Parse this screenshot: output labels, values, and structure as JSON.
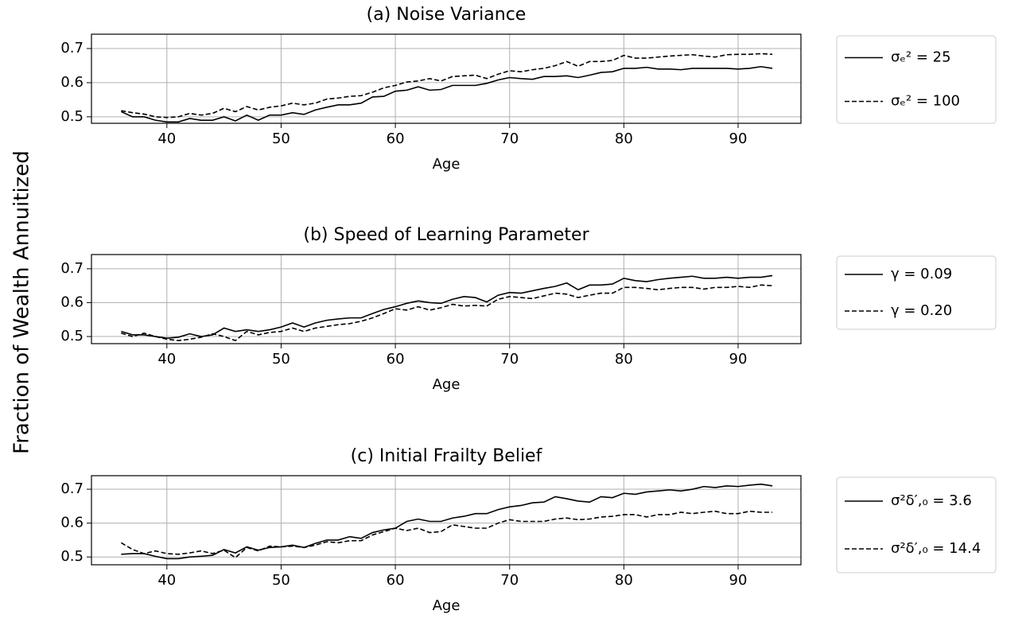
{
  "ylabel": "Fraction of Wealth Annuitized",
  "chart_data": [
    {
      "type": "line",
      "title": "(a) Noise Variance",
      "xlabel": "Age",
      "grid": true,
      "legend": "outside right",
      "x": [
        36,
        37,
        38,
        39,
        40,
        41,
        42,
        43,
        44,
        45,
        46,
        47,
        48,
        49,
        50,
        51,
        52,
        53,
        54,
        55,
        56,
        57,
        58,
        59,
        60,
        61,
        62,
        63,
        64,
        65,
        66,
        67,
        68,
        69,
        70,
        71,
        72,
        73,
        74,
        75,
        76,
        77,
        78,
        79,
        80,
        81,
        82,
        83,
        84,
        85,
        86,
        87,
        88,
        89,
        90,
        91,
        92,
        93
      ],
      "xlim": [
        33.4,
        95.5
      ],
      "xticks": [
        40,
        50,
        60,
        70,
        80,
        90
      ],
      "ylim": [
        0.481,
        0.742
      ],
      "yticks": [
        0.5,
        0.6,
        0.7
      ],
      "series": [
        {
          "name": "σₑ² = 25",
          "color": "#000000",
          "linestyle": "solid",
          "values": [
            0.515,
            0.5,
            0.5,
            0.49,
            0.485,
            0.485,
            0.495,
            0.49,
            0.49,
            0.5,
            0.488,
            0.505,
            0.49,
            0.505,
            0.505,
            0.512,
            0.507,
            0.52,
            0.528,
            0.535,
            0.535,
            0.54,
            0.558,
            0.56,
            0.575,
            0.578,
            0.588,
            0.578,
            0.58,
            0.592,
            0.592,
            0.592,
            0.598,
            0.608,
            0.615,
            0.612,
            0.61,
            0.618,
            0.618,
            0.62,
            0.615,
            0.622,
            0.63,
            0.632,
            0.642,
            0.642,
            0.645,
            0.64,
            0.64,
            0.638,
            0.642,
            0.642,
            0.642,
            0.642,
            0.64,
            0.642,
            0.647,
            0.642
          ]
        },
        {
          "name": "σₑ² = 100",
          "color": "#000000",
          "linestyle": "dashed",
          "values": [
            0.518,
            0.512,
            0.508,
            0.5,
            0.498,
            0.5,
            0.51,
            0.505,
            0.51,
            0.525,
            0.515,
            0.53,
            0.52,
            0.528,
            0.532,
            0.54,
            0.535,
            0.54,
            0.552,
            0.555,
            0.56,
            0.562,
            0.572,
            0.585,
            0.592,
            0.602,
            0.605,
            0.612,
            0.605,
            0.618,
            0.62,
            0.622,
            0.612,
            0.625,
            0.635,
            0.632,
            0.638,
            0.642,
            0.65,
            0.662,
            0.648,
            0.662,
            0.662,
            0.665,
            0.68,
            0.672,
            0.672,
            0.675,
            0.678,
            0.68,
            0.682,
            0.678,
            0.675,
            0.682,
            0.683,
            0.683,
            0.685,
            0.683
          ]
        }
      ]
    },
    {
      "type": "line",
      "title": "(b) Speed of Learning Parameter",
      "xlabel": "Age",
      "grid": true,
      "legend": "outside right",
      "x": [
        36,
        37,
        38,
        39,
        40,
        41,
        42,
        43,
        44,
        45,
        46,
        47,
        48,
        49,
        50,
        51,
        52,
        53,
        54,
        55,
        56,
        57,
        58,
        59,
        60,
        61,
        62,
        63,
        64,
        65,
        66,
        67,
        68,
        69,
        70,
        71,
        72,
        73,
        74,
        75,
        76,
        77,
        78,
        79,
        80,
        81,
        82,
        83,
        84,
        85,
        86,
        87,
        88,
        89,
        90,
        91,
        92,
        93
      ],
      "xlim": [
        33.4,
        95.5
      ],
      "xticks": [
        40,
        50,
        60,
        70,
        80,
        90
      ],
      "ylim": [
        0.479,
        0.742
      ],
      "yticks": [
        0.5,
        0.6,
        0.7
      ],
      "series": [
        {
          "name": "γ = 0.09",
          "color": "#000000",
          "linestyle": "solid",
          "values": [
            0.515,
            0.505,
            0.505,
            0.5,
            0.495,
            0.498,
            0.508,
            0.5,
            0.505,
            0.525,
            0.515,
            0.52,
            0.515,
            0.52,
            0.528,
            0.54,
            0.528,
            0.54,
            0.548,
            0.552,
            0.555,
            0.555,
            0.568,
            0.58,
            0.588,
            0.598,
            0.605,
            0.6,
            0.598,
            0.61,
            0.618,
            0.615,
            0.602,
            0.622,
            0.63,
            0.628,
            0.635,
            0.642,
            0.648,
            0.658,
            0.638,
            0.652,
            0.652,
            0.655,
            0.672,
            0.665,
            0.662,
            0.668,
            0.672,
            0.675,
            0.678,
            0.672,
            0.672,
            0.675,
            0.672,
            0.675,
            0.675,
            0.68
          ]
        },
        {
          "name": "γ = 0.20",
          "color": "#000000",
          "linestyle": "dashed",
          "values": [
            0.51,
            0.5,
            0.51,
            0.5,
            0.492,
            0.488,
            0.492,
            0.498,
            0.508,
            0.5,
            0.488,
            0.515,
            0.505,
            0.512,
            0.515,
            0.525,
            0.515,
            0.525,
            0.53,
            0.535,
            0.538,
            0.545,
            0.555,
            0.568,
            0.582,
            0.578,
            0.588,
            0.578,
            0.585,
            0.595,
            0.59,
            0.592,
            0.59,
            0.61,
            0.618,
            0.615,
            0.612,
            0.62,
            0.628,
            0.625,
            0.615,
            0.622,
            0.628,
            0.628,
            0.645,
            0.645,
            0.642,
            0.638,
            0.642,
            0.645,
            0.645,
            0.64,
            0.645,
            0.645,
            0.648,
            0.645,
            0.652,
            0.65
          ]
        }
      ]
    },
    {
      "type": "line",
      "title": "(c) Initial Frailty Belief",
      "xlabel": "Age",
      "grid": true,
      "legend": "outside right",
      "x": [
        36,
        37,
        38,
        39,
        40,
        41,
        42,
        43,
        44,
        45,
        46,
        47,
        48,
        49,
        50,
        51,
        52,
        53,
        54,
        55,
        56,
        57,
        58,
        59,
        60,
        61,
        62,
        63,
        64,
        65,
        66,
        67,
        68,
        69,
        70,
        71,
        72,
        73,
        74,
        75,
        76,
        77,
        78,
        79,
        80,
        81,
        82,
        83,
        84,
        85,
        86,
        87,
        88,
        89,
        90,
        91,
        92,
        93
      ],
      "xlim": [
        33.4,
        95.5
      ],
      "xticks": [
        40,
        50,
        60,
        70,
        80,
        90
      ],
      "ylim": [
        0.477,
        0.74
      ],
      "yticks": [
        0.5,
        0.6,
        0.7
      ],
      "series": [
        {
          "name": "σ²δ′,₀ = 3.6",
          "color": "#000000",
          "linestyle": "solid",
          "values": [
            0.508,
            0.51,
            0.51,
            0.502,
            0.495,
            0.495,
            0.5,
            0.502,
            0.505,
            0.522,
            0.512,
            0.53,
            0.52,
            0.528,
            0.53,
            0.535,
            0.528,
            0.54,
            0.55,
            0.55,
            0.56,
            0.555,
            0.572,
            0.58,
            0.585,
            0.605,
            0.612,
            0.605,
            0.605,
            0.615,
            0.62,
            0.628,
            0.628,
            0.64,
            0.648,
            0.652,
            0.66,
            0.662,
            0.678,
            0.672,
            0.665,
            0.662,
            0.678,
            0.675,
            0.688,
            0.685,
            0.692,
            0.695,
            0.698,
            0.695,
            0.7,
            0.708,
            0.705,
            0.71,
            0.708,
            0.712,
            0.715,
            0.71
          ]
        },
        {
          "name": "σ²δ′,₀ = 14.4",
          "color": "#000000",
          "linestyle": "dashed",
          "values": [
            0.542,
            0.522,
            0.51,
            0.518,
            0.51,
            0.508,
            0.512,
            0.518,
            0.51,
            0.52,
            0.498,
            0.528,
            0.518,
            0.532,
            0.53,
            0.532,
            0.528,
            0.535,
            0.545,
            0.542,
            0.548,
            0.548,
            0.565,
            0.575,
            0.585,
            0.578,
            0.585,
            0.572,
            0.575,
            0.595,
            0.59,
            0.585,
            0.585,
            0.6,
            0.61,
            0.605,
            0.605,
            0.605,
            0.612,
            0.615,
            0.61,
            0.612,
            0.618,
            0.62,
            0.625,
            0.625,
            0.618,
            0.625,
            0.625,
            0.632,
            0.628,
            0.632,
            0.635,
            0.628,
            0.628,
            0.635,
            0.632,
            0.632
          ]
        }
      ]
    }
  ]
}
